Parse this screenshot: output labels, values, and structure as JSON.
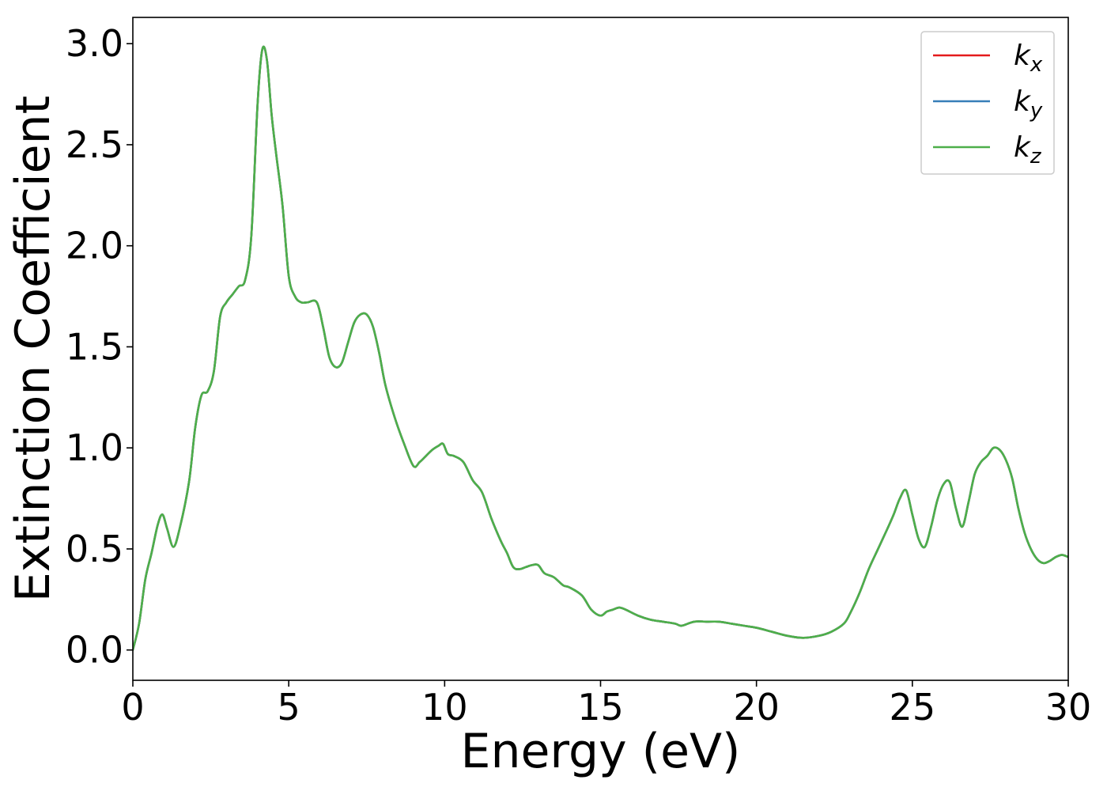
{
  "chart_data": {
    "type": "line",
    "title": "",
    "xlabel": "Energy (eV)",
    "ylabel": "Extinction Coefficient",
    "xlim": [
      0,
      30
    ],
    "ylim": [
      -0.15,
      3.13
    ],
    "xticks": [
      0,
      5,
      10,
      15,
      20,
      25,
      30
    ],
    "xtick_labels": [
      "0",
      "5",
      "10",
      "15",
      "20",
      "25",
      "30"
    ],
    "yticks": [
      0.0,
      0.5,
      1.0,
      1.5,
      2.0,
      2.5,
      3.0
    ],
    "ytick_labels": [
      "0.0",
      "0.5",
      "1.0",
      "1.5",
      "2.0",
      "2.5",
      "3.0"
    ],
    "grid": false,
    "legend_position": "top-right",
    "x": [
      0,
      0.2,
      0.4,
      0.6,
      0.8,
      0.95,
      1.1,
      1.3,
      1.5,
      1.8,
      2.0,
      2.2,
      2.4,
      2.6,
      2.8,
      3.0,
      3.2,
      3.4,
      3.6,
      3.8,
      4.0,
      4.15,
      4.3,
      4.45,
      4.6,
      4.8,
      5.0,
      5.2,
      5.4,
      5.6,
      5.9,
      6.1,
      6.3,
      6.5,
      6.7,
      6.9,
      7.1,
      7.3,
      7.5,
      7.7,
      7.9,
      8.1,
      8.4,
      8.7,
      9.0,
      9.2,
      9.4,
      9.6,
      9.8,
      9.95,
      10.1,
      10.3,
      10.6,
      10.9,
      11.2,
      11.5,
      11.8,
      12.0,
      12.2,
      12.4,
      12.6,
      12.8,
      13.0,
      13.2,
      13.5,
      13.8,
      14.0,
      14.4,
      14.7,
      15.0,
      15.2,
      15.4,
      15.6,
      15.8,
      16.2,
      16.6,
      17.0,
      17.4,
      17.6,
      18.0,
      18.4,
      18.8,
      19.2,
      19.6,
      20.0,
      20.5,
      21.0,
      21.5,
      22.0,
      22.4,
      22.8,
      23.0,
      23.3,
      23.6,
      23.9,
      24.2,
      24.4,
      24.6,
      24.8,
      25.0,
      25.2,
      25.4,
      25.6,
      25.8,
      26.0,
      26.2,
      26.4,
      26.6,
      26.8,
      27.0,
      27.2,
      27.4,
      27.6,
      27.8,
      28.0,
      28.2,
      28.4,
      28.6,
      28.8,
      29.0,
      29.2,
      29.4,
      29.6,
      29.8,
      30.0
    ],
    "series": [
      {
        "name": "k_x",
        "legend_base": "k",
        "legend_sub": "x",
        "color": "#e41a1c",
        "values": [
          0.0,
          0.13,
          0.35,
          0.48,
          0.62,
          0.67,
          0.6,
          0.51,
          0.6,
          0.83,
          1.1,
          1.26,
          1.28,
          1.38,
          1.65,
          1.72,
          1.76,
          1.8,
          1.83,
          2.05,
          2.7,
          2.97,
          2.92,
          2.65,
          2.45,
          2.2,
          1.85,
          1.75,
          1.72,
          1.72,
          1.72,
          1.6,
          1.45,
          1.4,
          1.42,
          1.52,
          1.62,
          1.66,
          1.66,
          1.6,
          1.47,
          1.31,
          1.15,
          1.02,
          0.91,
          0.93,
          0.96,
          0.99,
          1.01,
          1.02,
          0.97,
          0.96,
          0.93,
          0.84,
          0.78,
          0.65,
          0.54,
          0.48,
          0.41,
          0.4,
          0.41,
          0.42,
          0.42,
          0.38,
          0.36,
          0.32,
          0.31,
          0.27,
          0.2,
          0.17,
          0.19,
          0.2,
          0.21,
          0.2,
          0.17,
          0.15,
          0.14,
          0.13,
          0.12,
          0.14,
          0.14,
          0.14,
          0.13,
          0.12,
          0.11,
          0.09,
          0.07,
          0.06,
          0.07,
          0.09,
          0.13,
          0.18,
          0.28,
          0.4,
          0.5,
          0.6,
          0.67,
          0.75,
          0.79,
          0.67,
          0.55,
          0.51,
          0.61,
          0.74,
          0.82,
          0.83,
          0.7,
          0.61,
          0.73,
          0.87,
          0.93,
          0.96,
          1.0,
          0.99,
          0.94,
          0.85,
          0.7,
          0.58,
          0.5,
          0.45,
          0.43,
          0.44,
          0.46,
          0.47,
          0.46
        ]
      },
      {
        "name": "k_y",
        "legend_base": "k",
        "legend_sub": "y",
        "color": "#377eb8",
        "values": [
          0.0,
          0.13,
          0.35,
          0.48,
          0.62,
          0.67,
          0.6,
          0.51,
          0.6,
          0.83,
          1.1,
          1.26,
          1.28,
          1.38,
          1.65,
          1.72,
          1.76,
          1.8,
          1.83,
          2.05,
          2.7,
          2.97,
          2.92,
          2.65,
          2.45,
          2.2,
          1.85,
          1.75,
          1.72,
          1.72,
          1.72,
          1.6,
          1.45,
          1.4,
          1.42,
          1.52,
          1.62,
          1.66,
          1.66,
          1.6,
          1.47,
          1.31,
          1.15,
          1.02,
          0.91,
          0.93,
          0.96,
          0.99,
          1.01,
          1.02,
          0.97,
          0.96,
          0.93,
          0.84,
          0.78,
          0.65,
          0.54,
          0.48,
          0.41,
          0.4,
          0.41,
          0.42,
          0.42,
          0.38,
          0.36,
          0.32,
          0.31,
          0.27,
          0.2,
          0.17,
          0.19,
          0.2,
          0.21,
          0.2,
          0.17,
          0.15,
          0.14,
          0.13,
          0.12,
          0.14,
          0.14,
          0.14,
          0.13,
          0.12,
          0.11,
          0.09,
          0.07,
          0.06,
          0.07,
          0.09,
          0.13,
          0.18,
          0.28,
          0.4,
          0.5,
          0.6,
          0.67,
          0.75,
          0.79,
          0.67,
          0.55,
          0.51,
          0.61,
          0.74,
          0.82,
          0.83,
          0.7,
          0.61,
          0.73,
          0.87,
          0.93,
          0.96,
          1.0,
          0.99,
          0.94,
          0.85,
          0.7,
          0.58,
          0.5,
          0.45,
          0.43,
          0.44,
          0.46,
          0.47,
          0.46
        ]
      },
      {
        "name": "k_z",
        "legend_base": "k",
        "legend_sub": "z",
        "color": "#4daf4a",
        "values": [
          0.0,
          0.13,
          0.35,
          0.48,
          0.62,
          0.67,
          0.6,
          0.51,
          0.6,
          0.83,
          1.1,
          1.26,
          1.28,
          1.38,
          1.65,
          1.72,
          1.76,
          1.8,
          1.83,
          2.05,
          2.7,
          2.97,
          2.92,
          2.65,
          2.45,
          2.2,
          1.85,
          1.75,
          1.72,
          1.72,
          1.72,
          1.6,
          1.45,
          1.4,
          1.42,
          1.52,
          1.62,
          1.66,
          1.66,
          1.6,
          1.47,
          1.31,
          1.15,
          1.02,
          0.91,
          0.93,
          0.96,
          0.99,
          1.01,
          1.02,
          0.97,
          0.96,
          0.93,
          0.84,
          0.78,
          0.65,
          0.54,
          0.48,
          0.41,
          0.4,
          0.41,
          0.42,
          0.42,
          0.38,
          0.36,
          0.32,
          0.31,
          0.27,
          0.2,
          0.17,
          0.19,
          0.2,
          0.21,
          0.2,
          0.17,
          0.15,
          0.14,
          0.13,
          0.12,
          0.14,
          0.14,
          0.14,
          0.13,
          0.12,
          0.11,
          0.09,
          0.07,
          0.06,
          0.07,
          0.09,
          0.13,
          0.18,
          0.28,
          0.4,
          0.5,
          0.6,
          0.67,
          0.75,
          0.79,
          0.67,
          0.55,
          0.51,
          0.61,
          0.74,
          0.82,
          0.83,
          0.7,
          0.61,
          0.73,
          0.87,
          0.93,
          0.96,
          1.0,
          0.99,
          0.94,
          0.85,
          0.7,
          0.58,
          0.5,
          0.45,
          0.43,
          0.44,
          0.46,
          0.47,
          0.46
        ]
      }
    ]
  }
}
